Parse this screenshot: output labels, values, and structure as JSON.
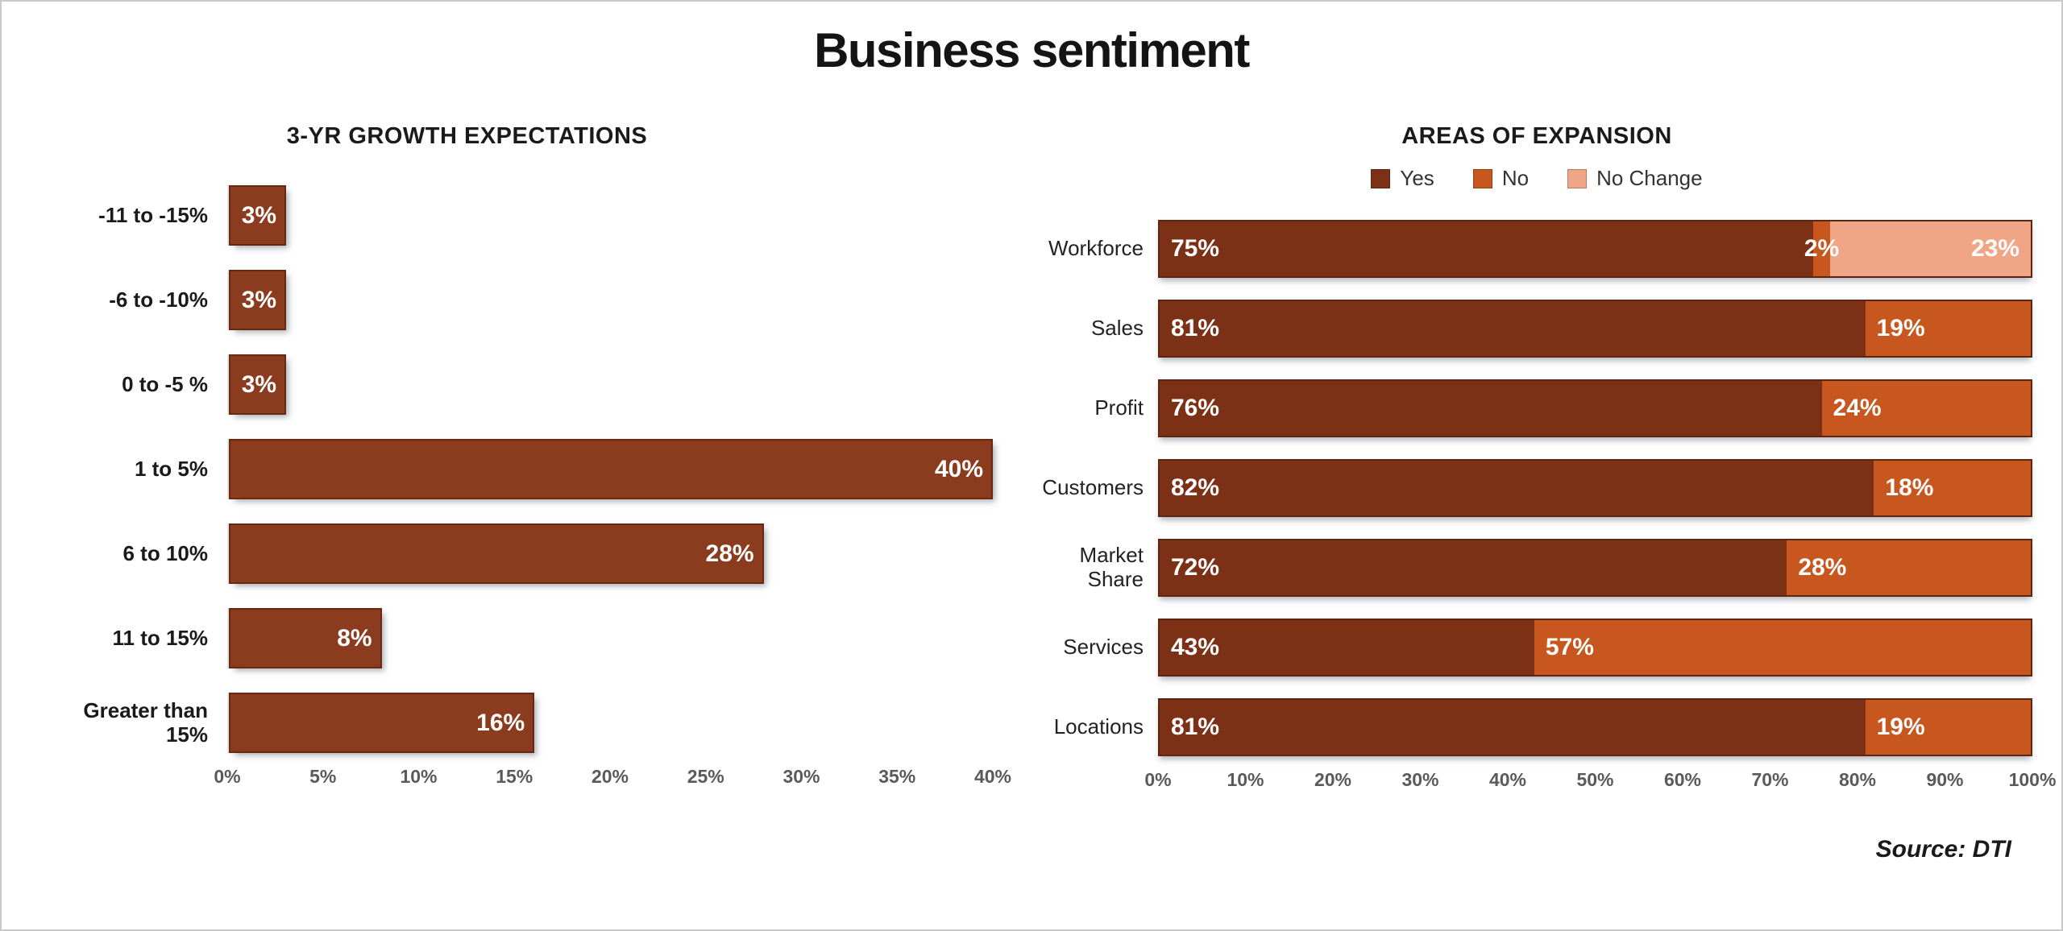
{
  "page": {
    "title": "Business sentiment",
    "source": "Source: DTI"
  },
  "colors": {
    "left_bar": "#8B3C1F",
    "left_bar_border": "#6B2810",
    "yes": "#7C3116",
    "no": "#C7571E",
    "no_change": "#F0A686",
    "bar_border": "#5E2510",
    "axis_text": "#5a5a5a"
  },
  "chart_data": [
    {
      "type": "bar",
      "orientation": "horizontal",
      "title": "3-YR GROWTH EXPECTATIONS",
      "xlim": [
        0,
        40
      ],
      "x_ticks": [
        "0%",
        "5%",
        "10%",
        "15%",
        "20%",
        "25%",
        "30%",
        "35%",
        "40%"
      ],
      "grid": false,
      "categories": [
        "-11 to -15%",
        "-6 to -10%",
        "0 to -5 %",
        "1 to 5%",
        "6 to 10%",
        "11 to 15%",
        "Greater than 15%"
      ],
      "values": [
        3,
        3,
        3,
        40,
        28,
        8,
        16
      ],
      "rows": [
        {
          "label": "-11 to -15%",
          "value": 3,
          "value_label": "3%"
        },
        {
          "label": "-6 to -10%",
          "value": 3,
          "value_label": "3%"
        },
        {
          "label": "0 to -5 %",
          "value": 3,
          "value_label": "3%"
        },
        {
          "label": "1 to 5%",
          "value": 40,
          "value_label": "40%"
        },
        {
          "label": "6 to 10%",
          "value": 28,
          "value_label": "28%"
        },
        {
          "label": "11 to 15%",
          "value": 8,
          "value_label": "8%"
        },
        {
          "label": "Greater than 15%",
          "value": 16,
          "value_label": "16%"
        }
      ]
    },
    {
      "type": "bar",
      "orientation": "horizontal",
      "stacked": true,
      "title": "AREAS OF EXPANSION",
      "legend": [
        "Yes",
        "No",
        "No Change"
      ],
      "legend_position": "top",
      "xlim": [
        0,
        100
      ],
      "x_ticks": [
        "0%",
        "10%",
        "20%",
        "30%",
        "40%",
        "50%",
        "60%",
        "70%",
        "80%",
        "90%",
        "100%"
      ],
      "grid": false,
      "categories": [
        "Workforce",
        "Sales",
        "Profit",
        "Customers",
        "Market Share",
        "Services",
        "Locations"
      ],
      "series": [
        {
          "name": "Yes",
          "values": [
            75,
            81,
            76,
            82,
            72,
            43,
            81
          ]
        },
        {
          "name": "No",
          "values": [
            2,
            19,
            24,
            18,
            28,
            57,
            19
          ]
        },
        {
          "name": "No Change",
          "values": [
            23,
            0,
            0,
            0,
            0,
            0,
            0
          ]
        }
      ],
      "rows": [
        {
          "label": "Workforce",
          "yes": 75,
          "no": 2,
          "no_change": 23,
          "yes_label": "75%",
          "no_label": "2%",
          "no_change_label": "23%"
        },
        {
          "label": "Sales",
          "yes": 81,
          "no": 19,
          "no_change": 0,
          "yes_label": "81%",
          "no_label": "19%"
        },
        {
          "label": "Profit",
          "yes": 76,
          "no": 24,
          "no_change": 0,
          "yes_label": "76%",
          "no_label": "24%"
        },
        {
          "label": "Customers",
          "yes": 82,
          "no": 18,
          "no_change": 0,
          "yes_label": "82%",
          "no_label": "18%"
        },
        {
          "label": "Market Share",
          "yes": 72,
          "no": 28,
          "no_change": 0,
          "yes_label": "72%",
          "no_label": "28%"
        },
        {
          "label": "Services",
          "yes": 43,
          "no": 57,
          "no_change": 0,
          "yes_label": "43%",
          "no_label": "57%"
        },
        {
          "label": "Locations",
          "yes": 81,
          "no": 19,
          "no_change": 0,
          "yes_label": "81%",
          "no_label": "19%"
        }
      ]
    }
  ]
}
